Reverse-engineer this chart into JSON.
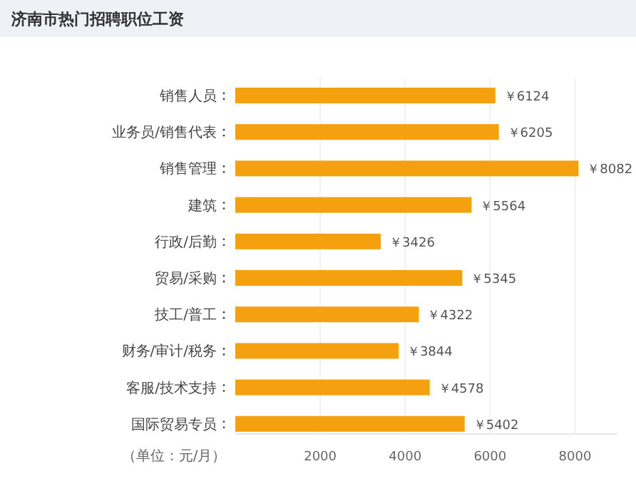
{
  "chart_data": {
    "type": "bar",
    "orientation": "horizontal",
    "title": "济南市热门招聘职位工资",
    "categories": [
      "销售人员",
      "业务员/销售代表",
      "销售管理",
      "建筑",
      "行政/后勤",
      "贸易/采购",
      "技工/普工",
      "财务/审计/税务",
      "客服/技术支持",
      "国际贸易专员"
    ],
    "values": [
      6124,
      6205,
      8082,
      5564,
      3426,
      5345,
      4322,
      3844,
      4578,
      5402
    ],
    "value_labels": [
      "￥6124",
      "￥6205",
      "￥8082",
      "￥5564",
      "￥3426",
      "￥5345",
      "￥4322",
      "￥3844",
      "￥4578",
      "￥5402"
    ],
    "color": "#f5a00e",
    "xlim": [
      0,
      9000
    ],
    "xticks": [
      2000,
      4000,
      6000,
      8000
    ],
    "grid": "x",
    "annotations": [
      "（单位：元/月）"
    ]
  }
}
